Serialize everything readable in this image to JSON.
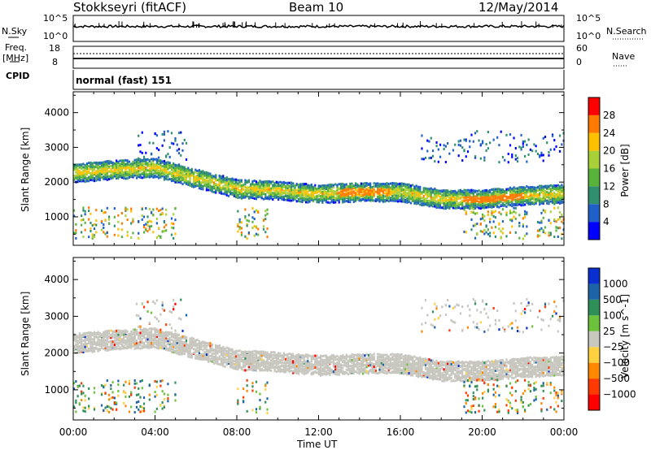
{
  "header": {
    "station": "Stokkseyri (fitACF)",
    "beam": "Beam 10",
    "date": "12/May/2014"
  },
  "top_panels": {
    "nsky_label": "N.Sky",
    "nsky_ticks": [
      "10^5",
      "10^0"
    ],
    "nsearch_label": "N.Search",
    "freq_label": "Freq.",
    "freq_unit": "[MHz]",
    "freq_ticks": [
      "18",
      "8"
    ],
    "nave_label": "Nave",
    "nave_ticks": [
      "60",
      "0"
    ],
    "cpid_label": "CPID",
    "cpid_value": "normal (fast) 151"
  },
  "colors": {
    "power": [
      "#0000ff",
      "#1f5fc8",
      "#2f8f6f",
      "#59b33b",
      "#a8d038",
      "#ffc000",
      "#ff7a00",
      "#ff0000"
    ],
    "velocity": [
      "#0a2fd0",
      "#1d63a8",
      "#2e8f58",
      "#6cc23a",
      "#c8c8c0",
      "#ffd040",
      "#ff8800",
      "#ff3a00",
      "#ff0000"
    ],
    "scatter_gray": "#c6c6be"
  },
  "chart_data": [
    {
      "type": "heatmap",
      "title": "",
      "xlabel": "",
      "ylabel": "Slant Range [km]",
      "x_ticks": [
        "00:00",
        "04:00",
        "08:00",
        "12:00",
        "16:00",
        "20:00",
        "00:00"
      ],
      "y_ticks": [
        "1000",
        "2000",
        "3000",
        "4000"
      ],
      "ylim": [
        180,
        4600
      ],
      "colorbar": {
        "label": "Power [dB]",
        "ticks": [
          "4",
          "8",
          "12",
          "16",
          "20",
          "24",
          "28"
        ]
      },
      "series": [
        {
          "x_hours": [
            0,
            2,
            4,
            6,
            8,
            10,
            12,
            14,
            16,
            18,
            20,
            22,
            24
          ],
          "band_center_km": [
            2300,
            2400,
            2450,
            2150,
            1850,
            1800,
            1700,
            1750,
            1750,
            1550,
            1550,
            1650,
            1700
          ]
        }
      ]
    },
    {
      "type": "heatmap",
      "title": "",
      "xlabel": "Time UT",
      "ylabel": "Slant Range [km]",
      "x_ticks": [
        "00:00",
        "04:00",
        "08:00",
        "12:00",
        "16:00",
        "20:00",
        "00:00"
      ],
      "y_ticks": [
        "1000",
        "2000",
        "3000",
        "4000"
      ],
      "ylim": [
        180,
        4600
      ],
      "colorbar": {
        "label": "Velocity [m s^-1]",
        "ticks": [
          "1000",
          "500",
          "100",
          "25",
          "−25",
          "−100",
          "−500",
          "−1000"
        ]
      }
    }
  ]
}
